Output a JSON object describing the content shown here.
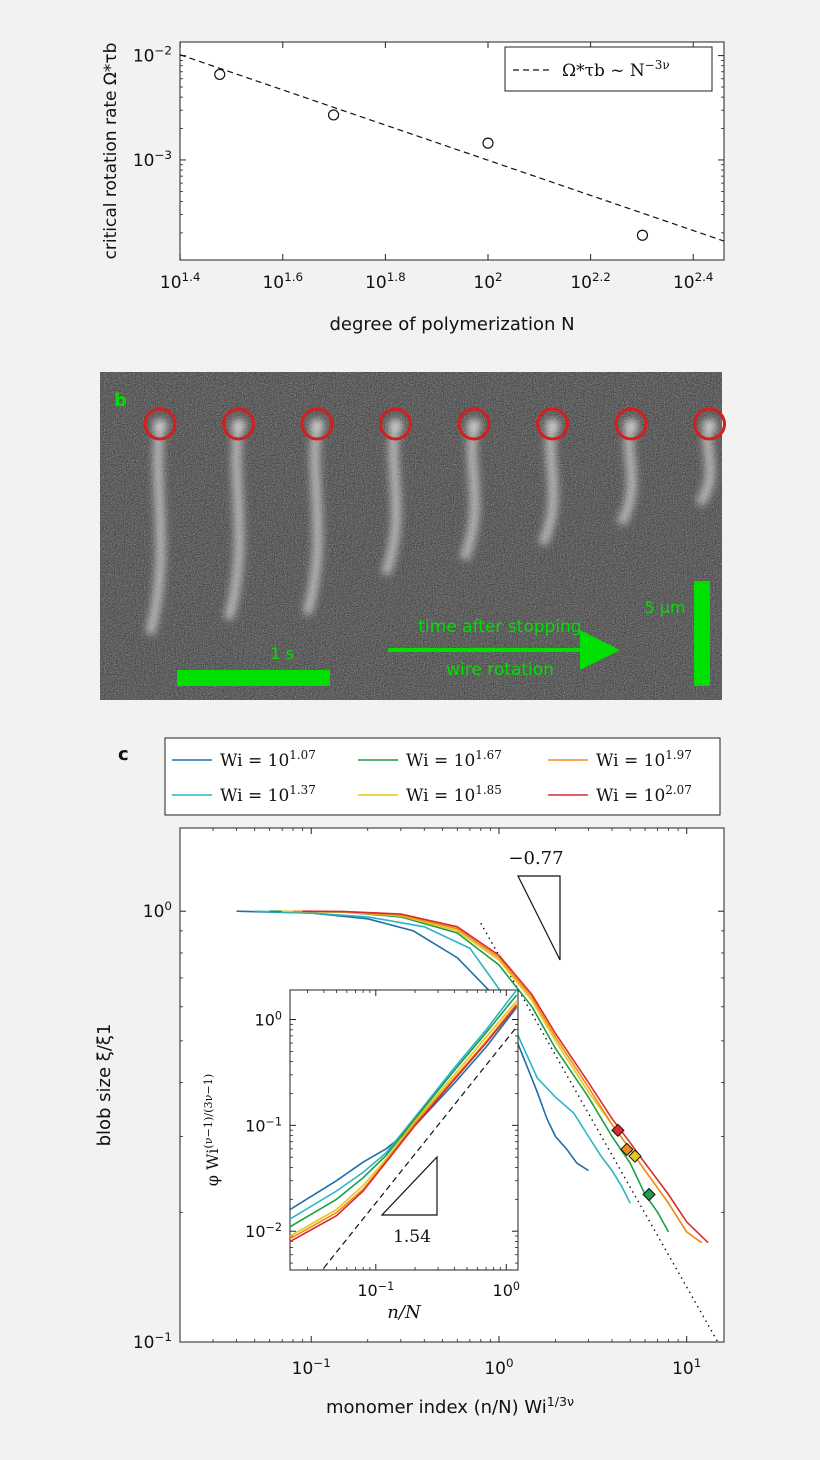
{
  "chart_data": [
    {
      "panel": "a",
      "type": "scatter",
      "xlabel": "degree of polymerization N",
      "ylabel": "critical rotation rate Ω*τb",
      "xscale": "log",
      "yscale": "log",
      "xlim": [
        25.1,
        288.4
      ],
      "ylim": [
        0.00011,
        0.0135
      ],
      "xticks": [
        "10^1.4",
        "10^1.6",
        "10^1.8",
        "10^2",
        "10^2.2",
        "10^2.4"
      ],
      "yticks": [
        "10^-2",
        "10^-3"
      ],
      "points": [
        {
          "x": 30,
          "y": 0.0066
        },
        {
          "x": 50,
          "y": 0.0027
        },
        {
          "x": 100,
          "y": 0.00145
        },
        {
          "x": 200,
          "y": 0.00019
        }
      ],
      "fit_line": {
        "from": [
          25.1,
          0.0102
        ],
        "to": [
          288.4,
          0.000167
        ],
        "style": "dashed"
      },
      "legend": [
        {
          "label": "Ω*τb ~ N^-3ν",
          "style": "dashed"
        }
      ],
      "legend_position": "top-right",
      "grid": false
    },
    {
      "panel": "c",
      "type": "line",
      "xlabel": "monomer index (n/N) Wi^1/3ν",
      "ylabel": "blob size ξ/ξ1",
      "xscale": "log",
      "yscale": "log",
      "xlim": [
        0.02,
        15.8
      ],
      "ylim": [
        0.1,
        1.56
      ],
      "xticks": [
        "10^-1",
        "10^0",
        "10^1"
      ],
      "yticks": [
        "10^0",
        "10^-1"
      ],
      "slope_annotation": "−0.77",
      "reference_line": {
        "slope": -0.77,
        "through": [
          1.6,
          0.55
        ],
        "style": "dotted"
      },
      "legend_position": "top (outside)",
      "series": [
        {
          "name": "Wi = 10^1.07",
          "color": "#1f6fa8",
          "x": [
            0.04,
            0.1,
            0.2,
            0.35,
            0.6,
            0.9,
            1.2,
            1.4,
            1.6,
            1.8,
            2,
            2.3,
            2.6,
            3
          ],
          "y": [
            1.0,
            0.99,
            0.96,
            0.9,
            0.78,
            0.65,
            0.52,
            0.44,
            0.38,
            0.33,
            0.3,
            0.28,
            0.26,
            0.25
          ]
        },
        {
          "name": "Wi = 10^1.37",
          "color": "#2bb5c4",
          "x": [
            0.05,
            0.1,
            0.2,
            0.4,
            0.7,
            1.0,
            1.3,
            1.6,
            2,
            2.5,
            3,
            3.5,
            4,
            4.5,
            5
          ],
          "y": [
            1.0,
            0.99,
            0.97,
            0.92,
            0.82,
            0.66,
            0.5,
            0.41,
            0.37,
            0.34,
            0.3,
            0.27,
            0.25,
            0.23,
            0.21
          ]
        },
        {
          "name": "Wi = 10^1.67",
          "color": "#1f9c4c",
          "x": [
            0.06,
            0.15,
            0.3,
            0.6,
            1.0,
            1.5,
            2,
            3,
            4,
            5,
            6,
            7,
            8
          ],
          "y": [
            1.0,
            0.995,
            0.97,
            0.89,
            0.75,
            0.6,
            0.48,
            0.37,
            0.3,
            0.26,
            0.22,
            0.2,
            0.18
          ]
        },
        {
          "name": "Wi = 10^1.85",
          "color": "#e8c619",
          "x": [
            0.07,
            0.15,
            0.3,
            0.6,
            1.0,
            1.5,
            2,
            3,
            4,
            5,
            6,
            8,
            10,
            12
          ],
          "y": [
            1.0,
            0.995,
            0.975,
            0.9,
            0.77,
            0.62,
            0.5,
            0.38,
            0.32,
            0.28,
            0.25,
            0.21,
            0.18,
            0.17
          ]
        },
        {
          "name": "Wi = 10^1.97",
          "color": "#f08b1a",
          "x": [
            0.08,
            0.15,
            0.3,
            0.6,
            1.0,
            1.5,
            2,
            3,
            4,
            5,
            6,
            8,
            10,
            12
          ],
          "y": [
            1.0,
            0.997,
            0.98,
            0.91,
            0.78,
            0.63,
            0.51,
            0.39,
            0.32,
            0.28,
            0.25,
            0.21,
            0.18,
            0.17
          ]
        },
        {
          "name": "Wi = 10^2.07",
          "color": "#d92b2b",
          "x": [
            0.09,
            0.15,
            0.3,
            0.6,
            1.0,
            1.5,
            2,
            3,
            4,
            5,
            6,
            8,
            10,
            13
          ],
          "y": [
            1.0,
            0.998,
            0.985,
            0.92,
            0.79,
            0.64,
            0.52,
            0.4,
            0.33,
            0.29,
            0.26,
            0.22,
            0.19,
            0.17
          ]
        }
      ],
      "markers": [
        {
          "color": "#d92b2b",
          "x": 4.3,
          "y": 0.31
        },
        {
          "color": "#f08b1a",
          "x": 4.8,
          "y": 0.28
        },
        {
          "color": "#e8c619",
          "x": 5.3,
          "y": 0.27
        },
        {
          "color": "#1f9c4c",
          "x": 6.3,
          "y": 0.22
        }
      ]
    },
    {
      "panel": "c-inset",
      "type": "line",
      "xlabel": "n/N",
      "ylabel": "φ Wi^(ν−1)/(3ν−1)",
      "xscale": "log",
      "yscale": "log",
      "xlim": [
        0.022,
        1.23
      ],
      "ylim": [
        0.0043,
        1.9
      ],
      "xticks": [
        "10^-1",
        "10^0"
      ],
      "yticks": [
        "10^0",
        "10^-1",
        "10^-2"
      ],
      "slope_annotation": "1.54",
      "reference_line": {
        "slope": 1.54,
        "from": [
          0.04,
          0.0045
        ],
        "to": [
          1.2,
          0.85
        ],
        "style": "dashed"
      },
      "series": [
        {
          "name": "Wi = 10^1.07",
          "color": "#1f6fa8",
          "x": [
            0.022,
            0.05,
            0.08,
            0.12,
            0.2,
            0.4,
            0.7,
            1.2
          ],
          "y": [
            0.016,
            0.03,
            0.045,
            0.06,
            0.1,
            0.25,
            0.55,
            1.3
          ]
        },
        {
          "name": "Wi = 10^1.37",
          "color": "#2bb5c4",
          "x": [
            0.022,
            0.05,
            0.08,
            0.12,
            0.2,
            0.4,
            0.7,
            1.2
          ],
          "y": [
            0.013,
            0.024,
            0.036,
            0.055,
            0.12,
            0.35,
            0.8,
            1.9
          ]
        },
        {
          "name": "Wi = 10^1.67",
          "color": "#1f9c4c",
          "x": [
            0.022,
            0.05,
            0.08,
            0.12,
            0.2,
            0.4,
            0.7,
            1.2
          ],
          "y": [
            0.011,
            0.02,
            0.032,
            0.052,
            0.115,
            0.33,
            0.75,
            1.7
          ]
        },
        {
          "name": "Wi = 10^1.85",
          "color": "#e8c619",
          "x": [
            0.022,
            0.05,
            0.08,
            0.12,
            0.2,
            0.4,
            0.7,
            1.2
          ],
          "y": [
            0.009,
            0.016,
            0.027,
            0.048,
            0.11,
            0.3,
            0.68,
            1.5
          ]
        },
        {
          "name": "Wi = 10^1.97",
          "color": "#f08b1a",
          "x": [
            0.022,
            0.05,
            0.08,
            0.12,
            0.2,
            0.4,
            0.7,
            1.2
          ],
          "y": [
            0.0085,
            0.015,
            0.025,
            0.046,
            0.105,
            0.28,
            0.62,
            1.4
          ]
        },
        {
          "name": "Wi = 10^2.07",
          "color": "#d92b2b",
          "x": [
            0.022,
            0.05,
            0.08,
            0.12,
            0.2,
            0.4,
            0.7,
            1.2
          ],
          "y": [
            0.008,
            0.014,
            0.024,
            0.045,
            0.1,
            0.27,
            0.6,
            1.35
          ]
        }
      ]
    }
  ],
  "panel_b": {
    "label": "b",
    "scale_time": "1 s",
    "scale_length": "5 μm",
    "arrow_text_1": "time after stopping",
    "arrow_text_2": "wire rotation",
    "accent_color": "#00e000",
    "marker_color": "#d41f1f",
    "frames": 8
  },
  "panel_c_label": "c"
}
